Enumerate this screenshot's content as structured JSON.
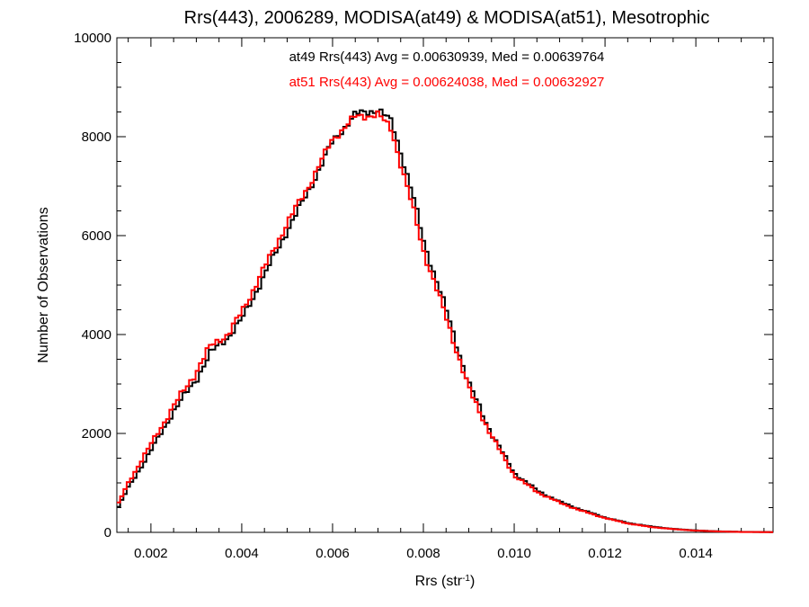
{
  "chart_data": {
    "type": "line",
    "title": "Rrs(443), 2006289, MODISA(at49) & MODISA(at51), Mesotrophic",
    "xlabel": "Rrs (str",
    "xlabel_sup": "-1",
    "xlabel_close": ")",
    "ylabel": "Number of Observations",
    "xlim": [
      0.00125,
      0.0157
    ],
    "ylim": [
      0,
      10000
    ],
    "xticks": [
      0.002,
      0.004,
      0.006,
      0.008,
      0.01,
      0.012,
      0.014
    ],
    "xtick_labels": [
      "0.002",
      "0.004",
      "0.006",
      "0.008",
      "0.010",
      "0.012",
      "0.014"
    ],
    "yticks": [
      0,
      2000,
      4000,
      6000,
      8000,
      10000
    ],
    "ytick_labels": [
      "0",
      "2000",
      "4000",
      "6000",
      "8000",
      "10000"
    ],
    "grid": false,
    "annotations": [
      {
        "text": "at49 Rrs(443) Avg = 0.00630939, Med = 0.00639764",
        "color": "#000000"
      },
      {
        "text": "at51 Rrs(443) Avg = 0.00624038, Med = 0.00632927",
        "color": "#ff0000"
      }
    ],
    "series": [
      {
        "color": "#000000",
        "x": [
          0.00125,
          0.0015,
          0.002,
          0.0025,
          0.003,
          0.0033,
          0.0035,
          0.0037,
          0.004,
          0.0045,
          0.005,
          0.0055,
          0.006,
          0.0065,
          0.007,
          0.0073,
          0.0075,
          0.0078,
          0.008,
          0.0085,
          0.009,
          0.0095,
          0.01,
          0.0105,
          0.011,
          0.0115,
          0.012,
          0.0125,
          0.013,
          0.0135,
          0.014,
          0.0145,
          0.015,
          0.0157
        ],
        "y": [
          450,
          900,
          1650,
          2450,
          3100,
          3600,
          3800,
          3950,
          4300,
          5200,
          6100,
          6950,
          7900,
          8450,
          8550,
          8300,
          7700,
          6700,
          5900,
          4500,
          3000,
          2000,
          1200,
          850,
          620,
          450,
          300,
          190,
          120,
          70,
          40,
          20,
          10,
          5
        ]
      },
      {
        "color": "#ff0000",
        "x": [
          0.00125,
          0.0015,
          0.002,
          0.0025,
          0.003,
          0.0033,
          0.0035,
          0.0037,
          0.004,
          0.0045,
          0.005,
          0.0055,
          0.006,
          0.0065,
          0.007,
          0.0073,
          0.0075,
          0.0078,
          0.008,
          0.0085,
          0.009,
          0.0095,
          0.01,
          0.0105,
          0.011,
          0.0115,
          0.012,
          0.0125,
          0.013,
          0.0135,
          0.014,
          0.0145,
          0.015,
          0.0157
        ],
        "y": [
          520,
          1000,
          1780,
          2550,
          3250,
          3750,
          3900,
          4000,
          4450,
          5350,
          6250,
          7050,
          7950,
          8400,
          8450,
          8150,
          7450,
          6450,
          5700,
          4350,
          2900,
          1950,
          1150,
          820,
          600,
          430,
          290,
          180,
          110,
          65,
          35,
          18,
          8,
          4
        ]
      }
    ]
  }
}
